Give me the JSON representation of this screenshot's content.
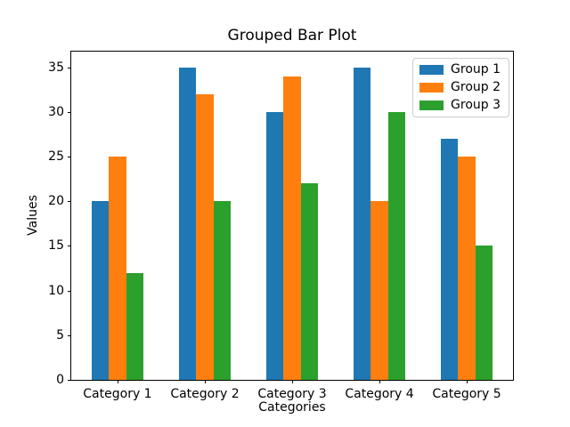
{
  "chart_data": {
    "type": "bar",
    "grouped": true,
    "title": "Grouped Bar Plot",
    "xlabel": "Categories",
    "ylabel": "Values",
    "categories": [
      "Category 1",
      "Category 2",
      "Category 3",
      "Category 4",
      "Category 5"
    ],
    "series": [
      {
        "name": "Group 1",
        "color": "#1f77b4",
        "values": [
          20,
          35,
          30,
          35,
          27
        ]
      },
      {
        "name": "Group 2",
        "color": "#ff7f0e",
        "values": [
          25,
          32,
          34,
          20,
          25
        ]
      },
      {
        "name": "Group 3",
        "color": "#2ca02c",
        "values": [
          12,
          20,
          22,
          30,
          15
        ]
      }
    ],
    "yticks": [
      0,
      5,
      10,
      15,
      20,
      25,
      30,
      35
    ],
    "ylim": [
      0,
      36.75
    ],
    "grid": false,
    "legend_position": "upper right",
    "background_color": "#ffffff",
    "spine_color": "#000000"
  }
}
